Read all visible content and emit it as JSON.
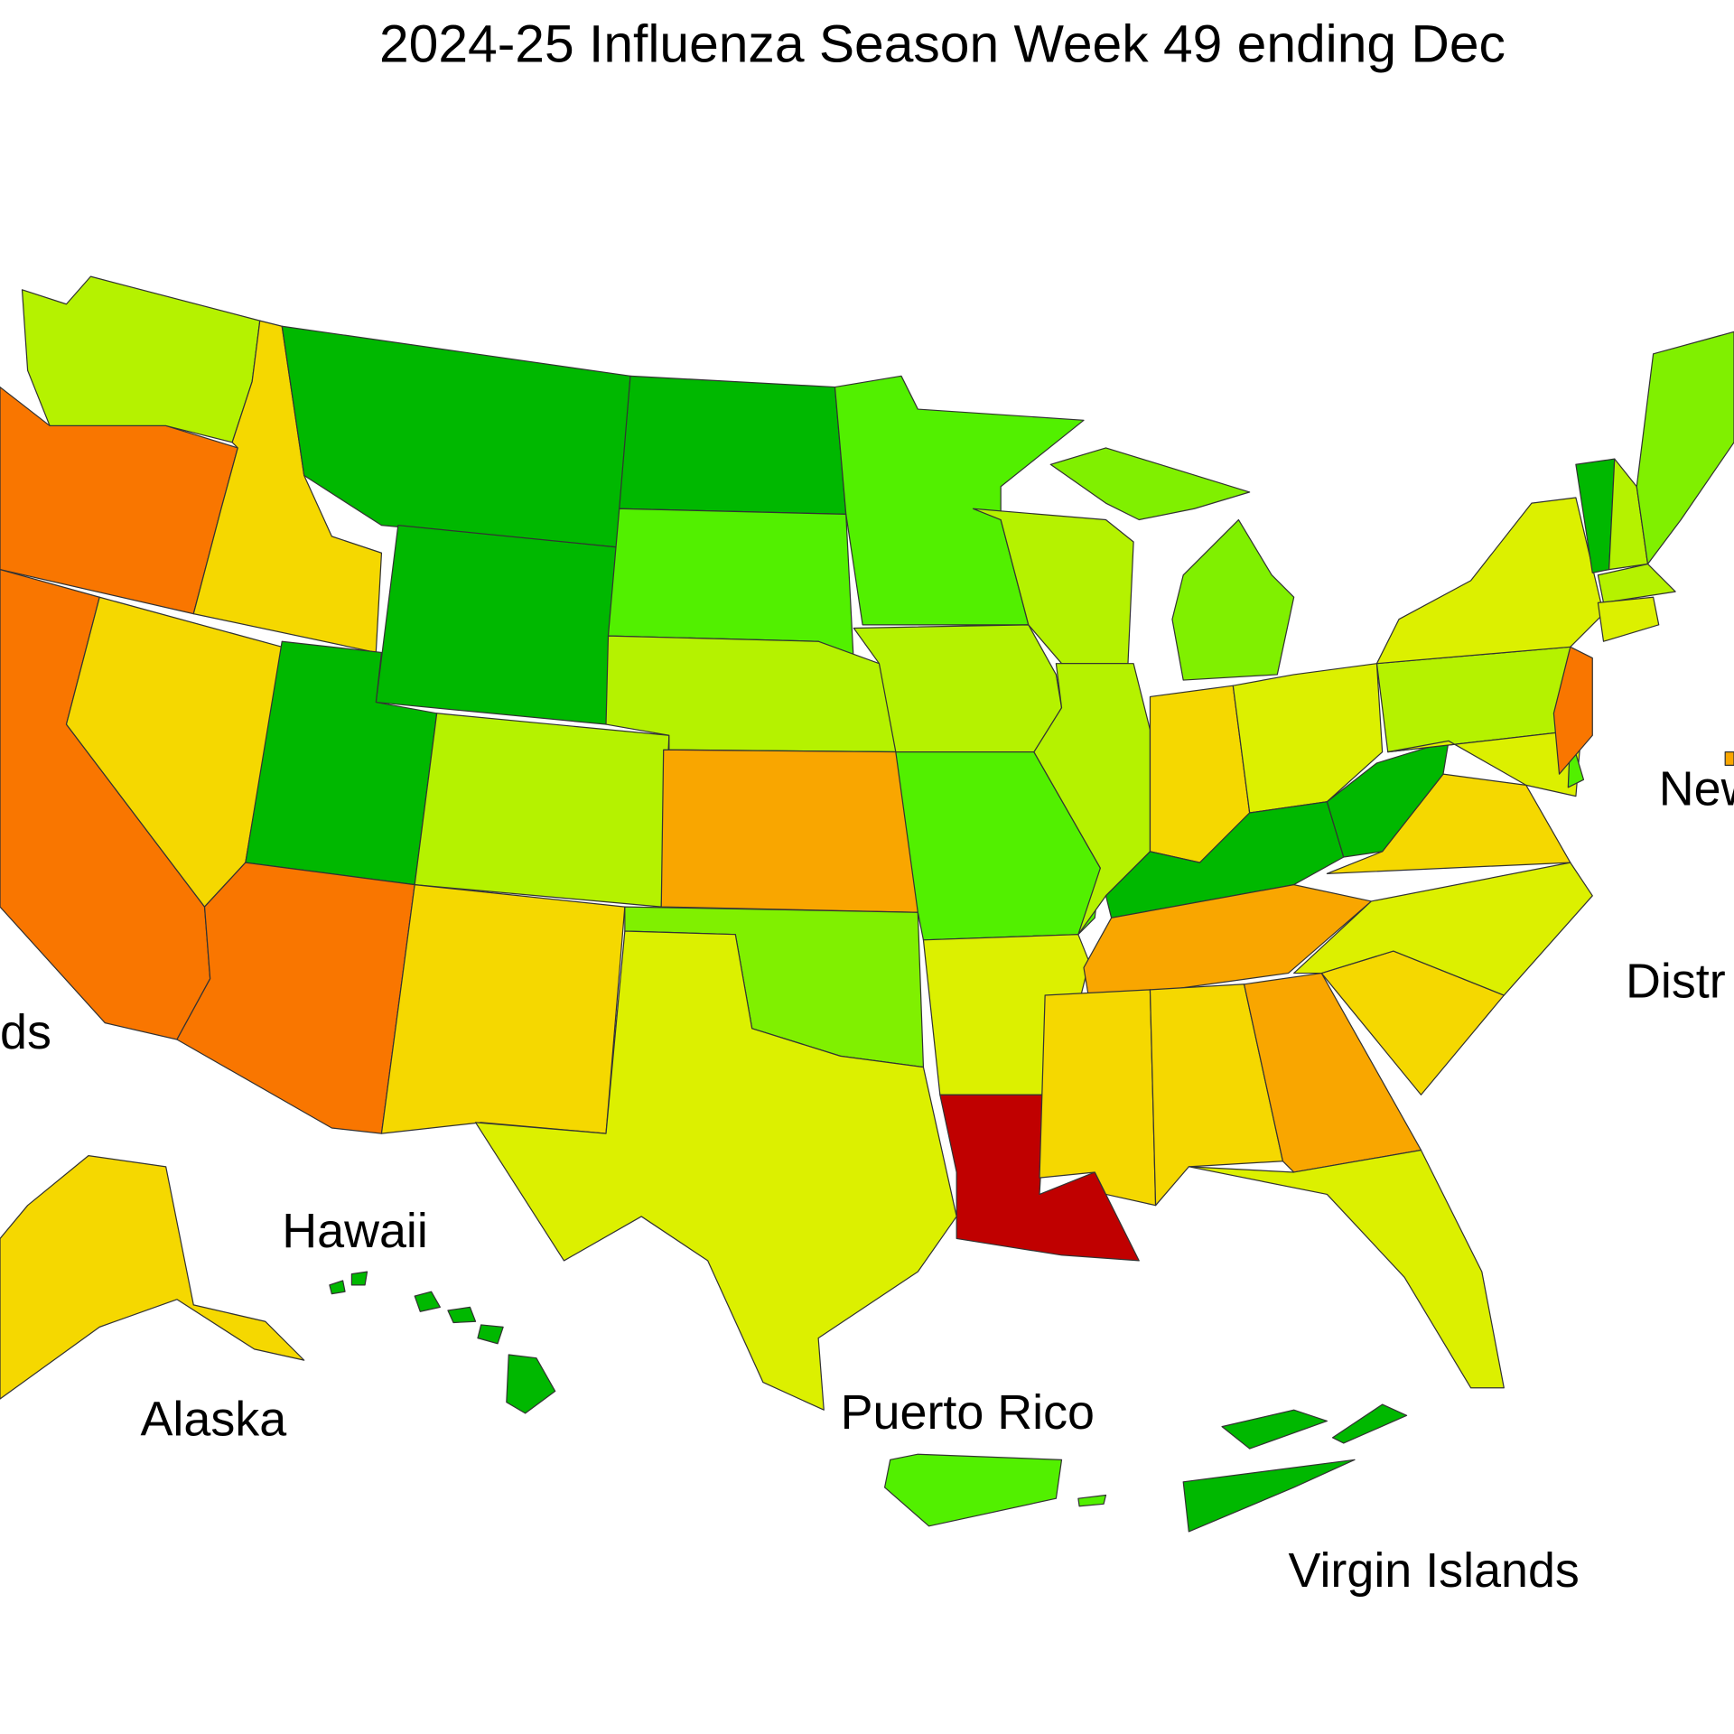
{
  "title": "2024-25 Influenza Season Week 49 ending Dec",
  "labels": [
    "New",
    "Distr",
    "ds",
    "Hawaii",
    "Alaska",
    "Puerto Rico",
    "Virgin Islands"
  ]
}
